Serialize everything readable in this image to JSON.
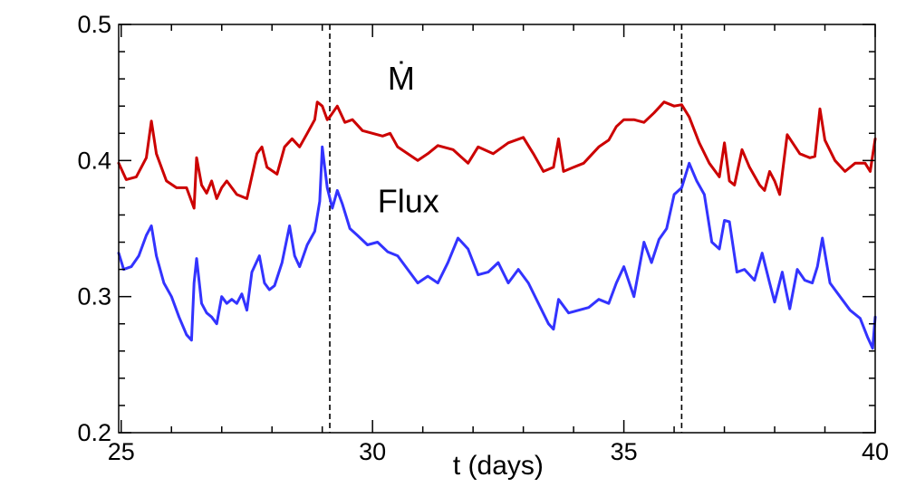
{
  "chart_data": {
    "type": "line",
    "xlabel": "t (days)",
    "ylabel": "",
    "xlim": [
      24.95,
      40
    ],
    "ylim": [
      0.2,
      0.5
    ],
    "xticks": [
      25,
      30,
      35,
      40
    ],
    "yticks": [
      0.2,
      0.3,
      0.4,
      0.5
    ],
    "xtick_labels": [
      "25",
      "30",
      "35",
      "40"
    ],
    "ytick_labels": [
      "0.2",
      "0.3",
      "0.4",
      "0.5"
    ],
    "grid": false,
    "vlines": [
      29.15,
      36.15
    ],
    "annotations": [
      {
        "text": "Ṁ",
        "x": 30.3,
        "y": 0.452
      },
      {
        "text": "Flux",
        "x": 30.1,
        "y": 0.362
      }
    ],
    "series": [
      {
        "color": "#cc0000",
        "x": [
          24.95,
          25.1,
          25.3,
          25.5,
          25.6,
          25.7,
          25.9,
          26.1,
          26.3,
          26.4,
          26.45,
          26.5,
          26.6,
          26.7,
          26.8,
          26.9,
          27.0,
          27.1,
          27.3,
          27.5,
          27.7,
          27.8,
          27.9,
          28.1,
          28.25,
          28.4,
          28.55,
          28.7,
          28.85,
          28.9,
          29.0,
          29.1,
          29.15,
          29.3,
          29.45,
          29.6,
          29.8,
          30.0,
          30.2,
          30.35,
          30.5,
          30.7,
          30.9,
          31.1,
          31.3,
          31.6,
          31.9,
          32.1,
          32.4,
          32.7,
          33.0,
          33.2,
          33.4,
          33.6,
          33.7,
          33.8,
          34.0,
          34.2,
          34.5,
          34.7,
          34.85,
          35.0,
          35.2,
          35.4,
          35.6,
          35.8,
          36.0,
          36.15,
          36.3,
          36.5,
          36.7,
          36.9,
          37.0,
          37.1,
          37.2,
          37.35,
          37.5,
          37.7,
          37.8,
          37.9,
          38.0,
          38.1,
          38.25,
          38.5,
          38.7,
          38.8,
          38.9,
          39.0,
          39.2,
          39.4,
          39.6,
          39.8,
          39.9,
          40.0
        ],
        "y": [
          0.398,
          0.386,
          0.388,
          0.402,
          0.429,
          0.405,
          0.385,
          0.38,
          0.38,
          0.37,
          0.365,
          0.402,
          0.382,
          0.376,
          0.385,
          0.372,
          0.38,
          0.385,
          0.375,
          0.372,
          0.405,
          0.41,
          0.395,
          0.39,
          0.41,
          0.416,
          0.41,
          0.42,
          0.43,
          0.443,
          0.44,
          0.43,
          0.432,
          0.44,
          0.428,
          0.43,
          0.422,
          0.42,
          0.418,
          0.42,
          0.41,
          0.405,
          0.4,
          0.405,
          0.411,
          0.408,
          0.398,
          0.41,
          0.405,
          0.413,
          0.417,
          0.405,
          0.392,
          0.395,
          0.416,
          0.392,
          0.395,
          0.398,
          0.41,
          0.415,
          0.425,
          0.43,
          0.43,
          0.428,
          0.435,
          0.443,
          0.44,
          0.441,
          0.432,
          0.413,
          0.398,
          0.388,
          0.413,
          0.385,
          0.382,
          0.408,
          0.395,
          0.382,
          0.378,
          0.392,
          0.385,
          0.375,
          0.419,
          0.405,
          0.402,
          0.403,
          0.438,
          0.415,
          0.4,
          0.392,
          0.398,
          0.398,
          0.392,
          0.416
        ]
      },
      {
        "color": "#3333ff",
        "x": [
          24.95,
          25.05,
          25.2,
          25.35,
          25.5,
          25.6,
          25.7,
          25.85,
          26.0,
          26.15,
          26.3,
          26.4,
          26.45,
          26.5,
          26.6,
          26.7,
          26.8,
          26.9,
          27.0,
          27.1,
          27.2,
          27.3,
          27.4,
          27.5,
          27.6,
          27.75,
          27.85,
          27.95,
          28.05,
          28.2,
          28.35,
          28.45,
          28.55,
          28.7,
          28.85,
          28.95,
          29.0,
          29.1,
          29.2,
          29.3,
          29.4,
          29.55,
          29.7,
          29.9,
          30.1,
          30.3,
          30.5,
          30.7,
          30.9,
          31.1,
          31.3,
          31.5,
          31.7,
          31.9,
          32.1,
          32.3,
          32.5,
          32.7,
          32.9,
          33.1,
          33.3,
          33.5,
          33.6,
          33.7,
          33.9,
          34.1,
          34.3,
          34.5,
          34.7,
          34.85,
          35.0,
          35.2,
          35.4,
          35.55,
          35.7,
          35.85,
          36.0,
          36.15,
          36.3,
          36.45,
          36.6,
          36.75,
          36.9,
          37.0,
          37.1,
          37.25,
          37.4,
          37.6,
          37.75,
          37.9,
          38.0,
          38.15,
          38.3,
          38.45,
          38.6,
          38.75,
          38.85,
          38.95,
          39.1,
          39.3,
          39.5,
          39.7,
          39.85,
          39.95,
          40.0
        ],
        "y": [
          0.332,
          0.32,
          0.322,
          0.33,
          0.345,
          0.352,
          0.33,
          0.31,
          0.3,
          0.285,
          0.272,
          0.268,
          0.31,
          0.328,
          0.295,
          0.288,
          0.285,
          0.28,
          0.3,
          0.295,
          0.298,
          0.295,
          0.302,
          0.29,
          0.318,
          0.33,
          0.31,
          0.305,
          0.308,
          0.325,
          0.352,
          0.33,
          0.322,
          0.338,
          0.348,
          0.37,
          0.41,
          0.38,
          0.365,
          0.378,
          0.368,
          0.35,
          0.345,
          0.338,
          0.34,
          0.333,
          0.33,
          0.32,
          0.31,
          0.315,
          0.31,
          0.325,
          0.343,
          0.335,
          0.316,
          0.318,
          0.325,
          0.31,
          0.32,
          0.31,
          0.295,
          0.28,
          0.276,
          0.298,
          0.288,
          0.29,
          0.292,
          0.298,
          0.295,
          0.31,
          0.322,
          0.3,
          0.34,
          0.325,
          0.342,
          0.35,
          0.375,
          0.38,
          0.398,
          0.385,
          0.375,
          0.34,
          0.335,
          0.356,
          0.355,
          0.318,
          0.32,
          0.312,
          0.332,
          0.31,
          0.296,
          0.318,
          0.291,
          0.32,
          0.312,
          0.31,
          0.322,
          0.343,
          0.31,
          0.3,
          0.29,
          0.284,
          0.27,
          0.262,
          0.285
        ]
      }
    ]
  }
}
